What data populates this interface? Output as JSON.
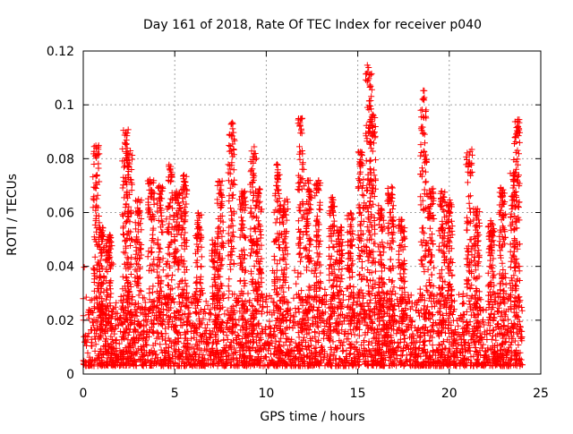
{
  "chart_data": {
    "type": "scatter",
    "title": "Day 161 of 2018, Rate Of TEC Index for receiver p040",
    "xlabel": "GPS time / hours",
    "ylabel": "ROTI / TECUs",
    "xlim": [
      0,
      25
    ],
    "ylim": [
      0,
      0.12
    ],
    "x_ticks": [
      {
        "value": 0,
        "label": "0"
      },
      {
        "value": 5,
        "label": "5"
      },
      {
        "value": 10,
        "label": "10"
      },
      {
        "value": 15,
        "label": "15"
      },
      {
        "value": 20,
        "label": "20"
      },
      {
        "value": 25,
        "label": "25"
      }
    ],
    "y_ticks": [
      {
        "value": 0,
        "label": "0"
      },
      {
        "value": 0.02,
        "label": "0.02"
      },
      {
        "value": 0.04,
        "label": "0.04"
      },
      {
        "value": 0.06,
        "label": "0.06"
      },
      {
        "value": 0.08,
        "label": "0.08"
      },
      {
        "value": 0.1,
        "label": "0.1"
      },
      {
        "value": 0.12,
        "label": "0.12"
      }
    ],
    "grid": true,
    "marker": "+",
    "color": "#ff0000",
    "x_data_range": [
      0,
      24
    ],
    "baseline_range": [
      0.003,
      0.03
    ],
    "peak_columns": [
      {
        "x": 0.7,
        "ymax": 0.085
      },
      {
        "x": 1.0,
        "ymax": 0.055
      },
      {
        "x": 1.4,
        "ymax": 0.052
      },
      {
        "x": 2.3,
        "ymax": 0.091
      },
      {
        "x": 2.5,
        "ymax": 0.083
      },
      {
        "x": 3.0,
        "ymax": 0.065
      },
      {
        "x": 3.7,
        "ymax": 0.073
      },
      {
        "x": 4.2,
        "ymax": 0.07
      },
      {
        "x": 4.7,
        "ymax": 0.078
      },
      {
        "x": 5.1,
        "ymax": 0.068
      },
      {
        "x": 5.5,
        "ymax": 0.074
      },
      {
        "x": 6.3,
        "ymax": 0.06
      },
      {
        "x": 7.2,
        "ymax": 0.05
      },
      {
        "x": 7.5,
        "ymax": 0.072
      },
      {
        "x": 8.1,
        "ymax": 0.094
      },
      {
        "x": 8.7,
        "ymax": 0.068
      },
      {
        "x": 9.3,
        "ymax": 0.085
      },
      {
        "x": 9.6,
        "ymax": 0.069
      },
      {
        "x": 10.6,
        "ymax": 0.078
      },
      {
        "x": 11.0,
        "ymax": 0.065
      },
      {
        "x": 11.9,
        "ymax": 0.095
      },
      {
        "x": 12.3,
        "ymax": 0.072
      },
      {
        "x": 12.8,
        "ymax": 0.072
      },
      {
        "x": 13.6,
        "ymax": 0.066
      },
      {
        "x": 14.0,
        "ymax": 0.055
      },
      {
        "x": 14.6,
        "ymax": 0.06
      },
      {
        "x": 15.2,
        "ymax": 0.083
      },
      {
        "x": 15.6,
        "ymax": 0.115
      },
      {
        "x": 15.8,
        "ymax": 0.098
      },
      {
        "x": 16.3,
        "ymax": 0.063
      },
      {
        "x": 16.8,
        "ymax": 0.07
      },
      {
        "x": 17.4,
        "ymax": 0.058
      },
      {
        "x": 18.6,
        "ymax": 0.106
      },
      {
        "x": 19.0,
        "ymax": 0.069
      },
      {
        "x": 19.6,
        "ymax": 0.068
      },
      {
        "x": 20.0,
        "ymax": 0.065
      },
      {
        "x": 21.1,
        "ymax": 0.084
      },
      {
        "x": 21.5,
        "ymax": 0.062
      },
      {
        "x": 22.3,
        "ymax": 0.057
      },
      {
        "x": 22.9,
        "ymax": 0.07
      },
      {
        "x": 23.5,
        "ymax": 0.075
      },
      {
        "x": 23.7,
        "ymax": 0.095
      }
    ]
  }
}
